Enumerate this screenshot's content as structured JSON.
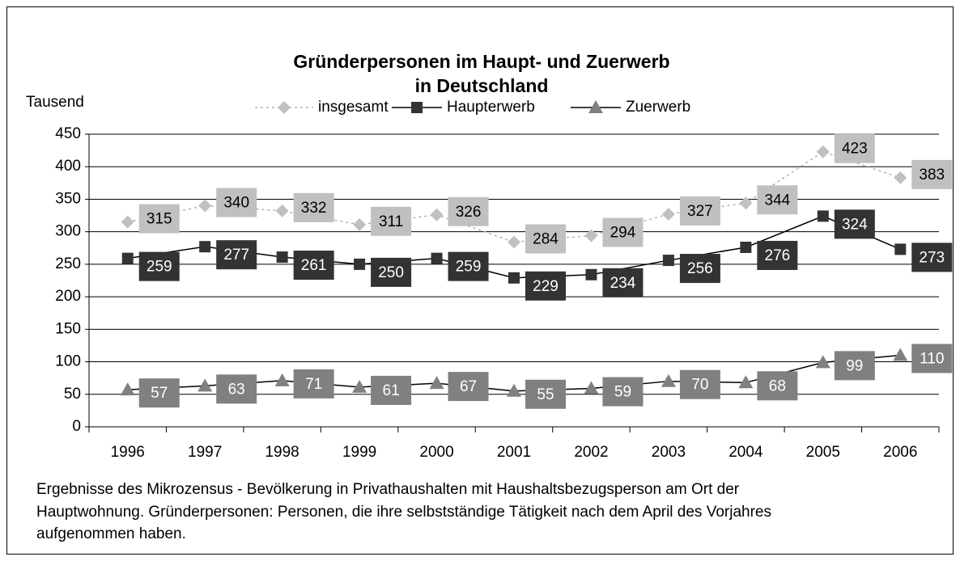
{
  "chart_data": {
    "type": "line",
    "title": [
      "Gründerpersonen im Haupt- und Zuerwerb",
      "in Deutschland"
    ],
    "y_axis_label": "Tausend",
    "categories": [
      "1996",
      "1997",
      "1998",
      "1999",
      "2000",
      "2001",
      "2002",
      "2003",
      "2004",
      "2005",
      "2006"
    ],
    "series": [
      {
        "name": "insgesamt",
        "color": "#c0c0c0",
        "marker": "diamond",
        "dash": true,
        "values": [
          315,
          340,
          332,
          311,
          326,
          284,
          294,
          327,
          344,
          423,
          383
        ]
      },
      {
        "name": "Haupterwerb",
        "color": "#333333",
        "marker": "square",
        "dash": false,
        "values": [
          259,
          277,
          261,
          250,
          259,
          229,
          234,
          256,
          276,
          324,
          273
        ]
      },
      {
        "name": "Zuerwerb",
        "color": "#808080",
        "marker": "triangle",
        "dash": false,
        "values": [
          57,
          63,
          71,
          61,
          67,
          55,
          59,
          70,
          68,
          99,
          110
        ]
      }
    ],
    "ylim": [
      0,
      450
    ],
    "yticks": [
      0,
      50,
      100,
      150,
      200,
      250,
      300,
      350,
      400,
      450
    ],
    "grid": true,
    "legend": "top",
    "note": [
      "Ergebnisse des Mikrozensus - Bevölkerung in Privathaushalten mit Haushaltsbezugsperson am Ort der",
      "Hauptwohnung. Gründerpersonen: Personen, die ihre selbstständige Tätigkeit nach dem April des Vorjahres",
      "aufgenommen haben."
    ]
  }
}
